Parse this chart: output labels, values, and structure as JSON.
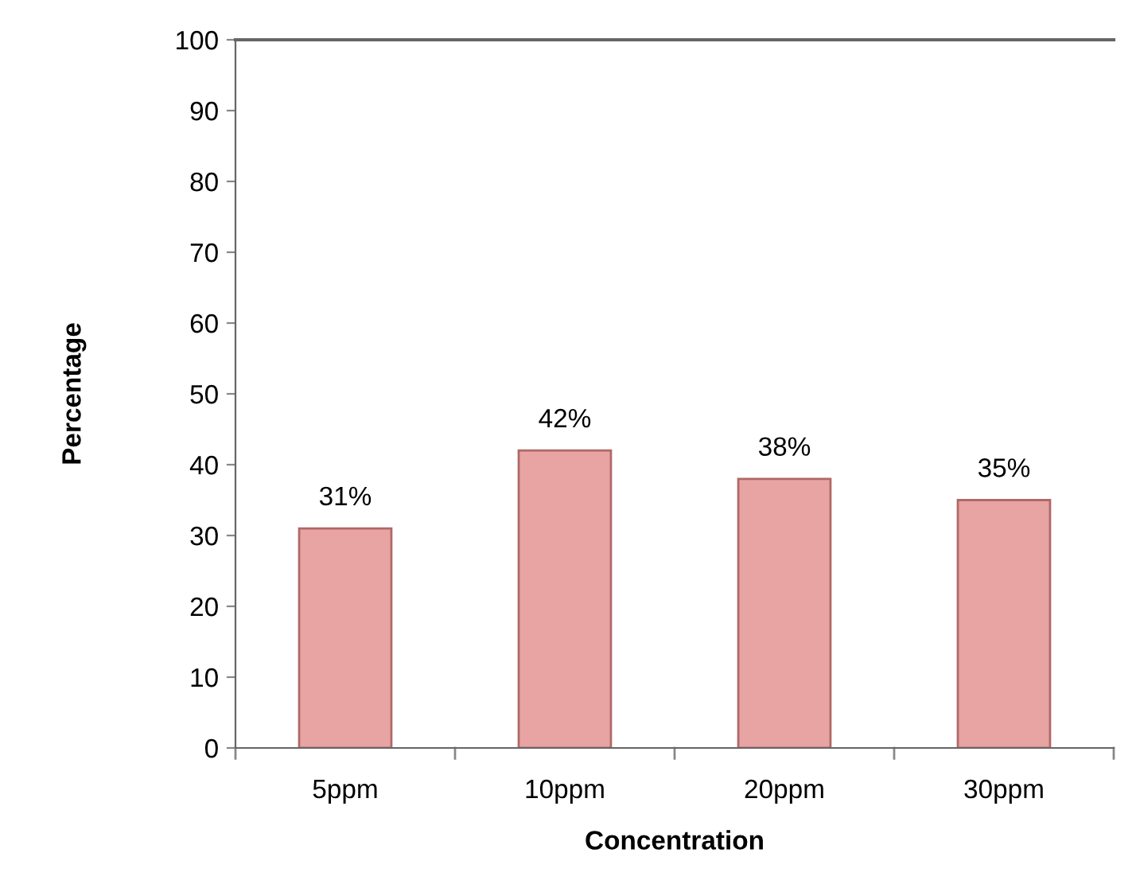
{
  "chart_data": {
    "type": "bar",
    "xlabel": "Concentration",
    "ylabel": "Percentage",
    "categories": [
      "5ppm",
      "10ppm",
      "20ppm",
      "30ppm"
    ],
    "values": [
      31,
      42,
      38,
      35
    ],
    "value_labels": [
      "31%",
      "42%",
      "38%",
      "35%"
    ],
    "color": "#e8a3a3",
    "ylim": [
      0,
      100
    ],
    "yticks": [
      0,
      10,
      20,
      30,
      40,
      50,
      60,
      70,
      80,
      90,
      100
    ],
    "grid": false,
    "legend": false
  }
}
